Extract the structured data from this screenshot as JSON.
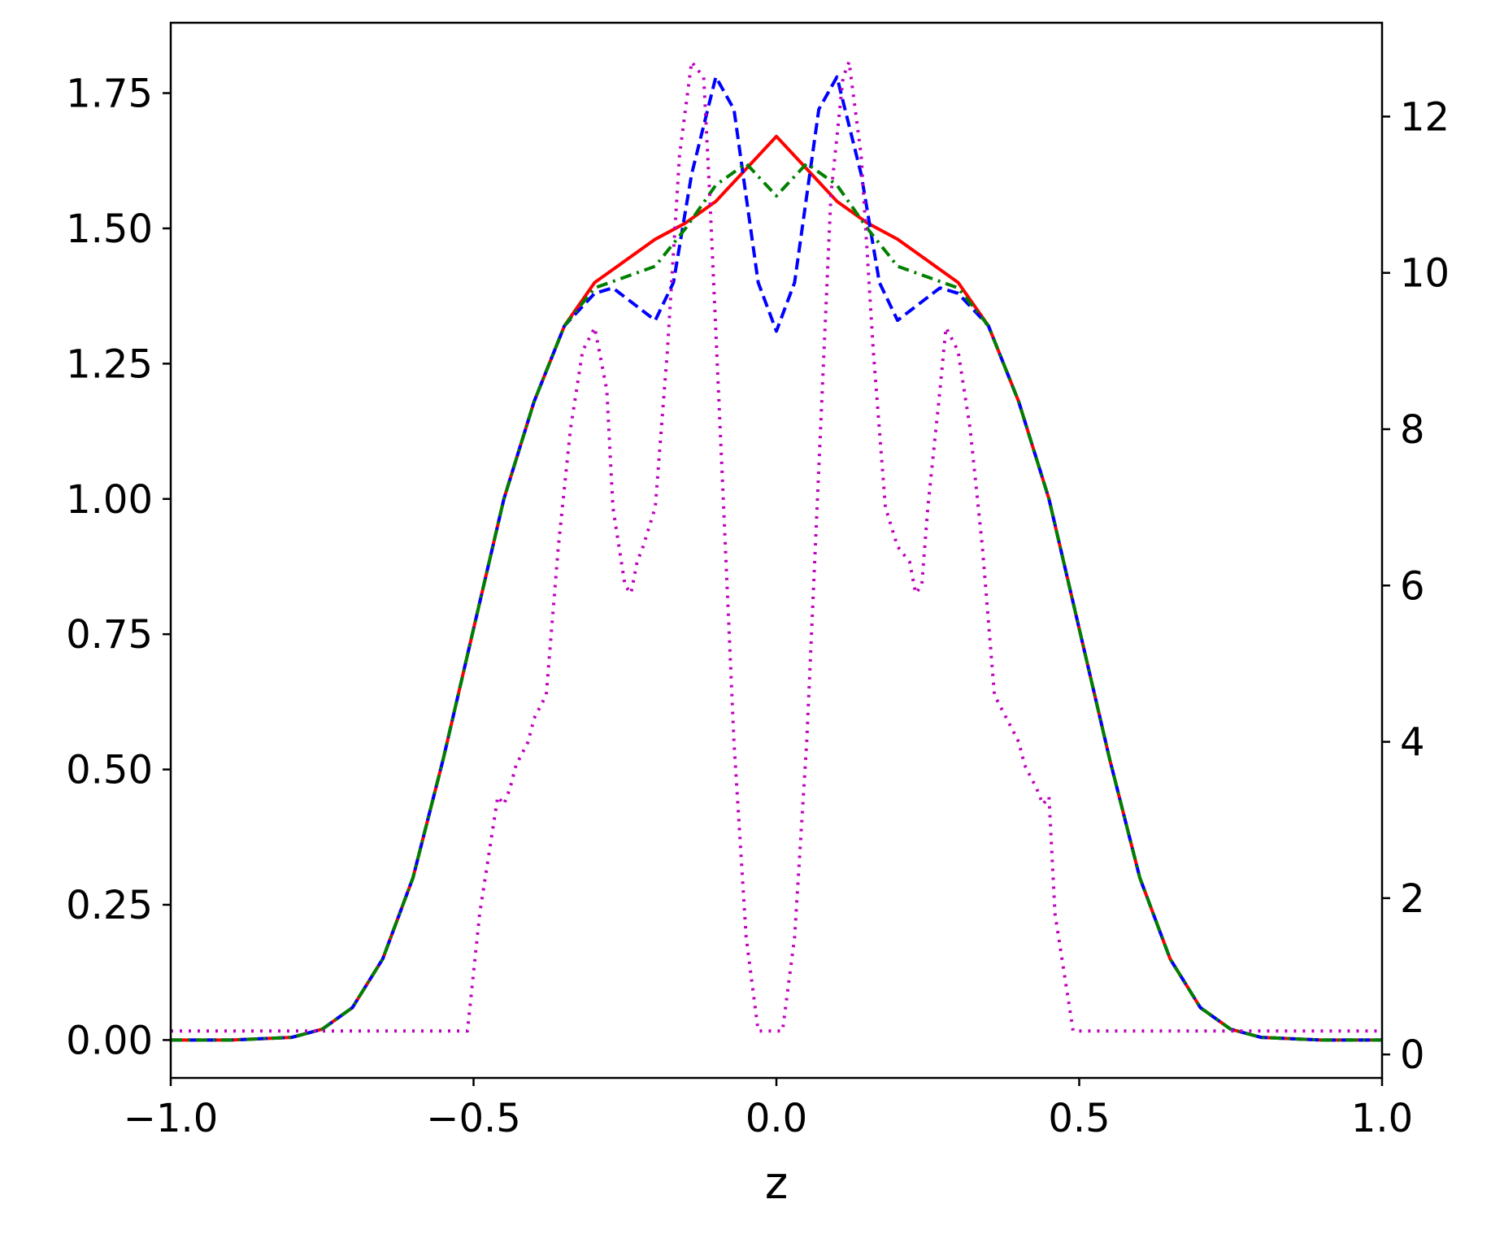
{
  "chart_data": {
    "type": "line",
    "title": "",
    "xlabel": "z",
    "ylabel": "",
    "ylabel_right": "",
    "xlim": [
      -1.0,
      1.0
    ],
    "ylim": [
      -0.07,
      1.88
    ],
    "ylim_right": [
      -0.3,
      13.2
    ],
    "grid": false,
    "legend": "none",
    "x_ticks": [
      {
        "value": -1.0,
        "label": "−1.0"
      },
      {
        "value": -0.5,
        "label": "−0.5"
      },
      {
        "value": 0.0,
        "label": "0.0"
      },
      {
        "value": 0.5,
        "label": "0.5"
      },
      {
        "value": 1.0,
        "label": "1.0"
      }
    ],
    "y_ticks": [
      {
        "value": 0.0,
        "label": "0.00"
      },
      {
        "value": 0.25,
        "label": "0.25"
      },
      {
        "value": 0.5,
        "label": "0.50"
      },
      {
        "value": 0.75,
        "label": "0.75"
      },
      {
        "value": 1.0,
        "label": "1.00"
      },
      {
        "value": 1.25,
        "label": "1.25"
      },
      {
        "value": 1.5,
        "label": "1.50"
      },
      {
        "value": 1.75,
        "label": "1.75"
      }
    ],
    "y_ticks_right": [
      {
        "value": 0,
        "label": "0"
      },
      {
        "value": 2,
        "label": "2"
      },
      {
        "value": 4,
        "label": "4"
      },
      {
        "value": 6,
        "label": "6"
      },
      {
        "value": 8,
        "label": "8"
      },
      {
        "value": 10,
        "label": "10"
      },
      {
        "value": 12,
        "label": "12"
      }
    ],
    "series": [
      {
        "color": "#ff0000",
        "style": "solid",
        "axis": "left",
        "x": [
          -1.0,
          -0.9,
          -0.8,
          -0.75,
          -0.7,
          -0.65,
          -0.6,
          -0.55,
          -0.5,
          -0.45,
          -0.4,
          -0.35,
          -0.3,
          -0.25,
          -0.2,
          -0.15,
          -0.1,
          -0.05,
          0.0,
          0.05,
          0.1,
          0.15,
          0.2,
          0.25,
          0.3,
          0.35,
          0.4,
          0.45,
          0.5,
          0.55,
          0.6,
          0.65,
          0.7,
          0.75,
          0.8,
          0.9,
          1.0
        ],
        "y": [
          0.0,
          0.0,
          0.005,
          0.02,
          0.06,
          0.15,
          0.3,
          0.52,
          0.76,
          1.0,
          1.18,
          1.32,
          1.4,
          1.44,
          1.48,
          1.51,
          1.55,
          1.61,
          1.67,
          1.61,
          1.55,
          1.51,
          1.48,
          1.44,
          1.4,
          1.32,
          1.18,
          1.0,
          0.76,
          0.52,
          0.3,
          0.15,
          0.06,
          0.02,
          0.005,
          0.0,
          0.0
        ]
      },
      {
        "color": "#0000ff",
        "style": "dashed",
        "axis": "left",
        "x": [
          -1.0,
          -0.9,
          -0.8,
          -0.75,
          -0.7,
          -0.65,
          -0.6,
          -0.55,
          -0.5,
          -0.45,
          -0.4,
          -0.35,
          -0.3,
          -0.27,
          -0.2,
          -0.17,
          -0.14,
          -0.1,
          -0.07,
          -0.03,
          0.0,
          0.03,
          0.07,
          0.1,
          0.14,
          0.17,
          0.2,
          0.27,
          0.3,
          0.35,
          0.4,
          0.45,
          0.5,
          0.55,
          0.6,
          0.65,
          0.7,
          0.75,
          0.8,
          0.9,
          1.0
        ],
        "y": [
          0.0,
          0.0,
          0.005,
          0.02,
          0.06,
          0.15,
          0.3,
          0.52,
          0.76,
          1.0,
          1.18,
          1.32,
          1.38,
          1.39,
          1.33,
          1.4,
          1.6,
          1.78,
          1.72,
          1.4,
          1.31,
          1.4,
          1.72,
          1.78,
          1.6,
          1.4,
          1.33,
          1.39,
          1.38,
          1.32,
          1.18,
          1.0,
          0.76,
          0.52,
          0.3,
          0.15,
          0.06,
          0.02,
          0.005,
          0.0,
          0.0
        ]
      },
      {
        "color": "#008000",
        "style": "dashdot",
        "axis": "left",
        "x": [
          -1.0,
          -0.9,
          -0.8,
          -0.75,
          -0.7,
          -0.65,
          -0.6,
          -0.55,
          -0.5,
          -0.45,
          -0.4,
          -0.35,
          -0.3,
          -0.25,
          -0.2,
          -0.15,
          -0.1,
          -0.05,
          0.0,
          0.05,
          0.1,
          0.15,
          0.2,
          0.25,
          0.3,
          0.35,
          0.4,
          0.45,
          0.5,
          0.55,
          0.6,
          0.65,
          0.7,
          0.75,
          0.8,
          0.9,
          1.0
        ],
        "y": [
          0.0,
          0.0,
          0.005,
          0.02,
          0.06,
          0.15,
          0.3,
          0.52,
          0.76,
          1.0,
          1.18,
          1.32,
          1.39,
          1.41,
          1.43,
          1.5,
          1.58,
          1.62,
          1.56,
          1.62,
          1.58,
          1.5,
          1.43,
          1.41,
          1.39,
          1.32,
          1.18,
          1.0,
          0.76,
          0.52,
          0.3,
          0.15,
          0.06,
          0.02,
          0.005,
          0.0,
          0.0
        ]
      },
      {
        "color": "#bf00bf",
        "style": "dotted",
        "axis": "right",
        "x": [
          -1.0,
          -0.51,
          -0.49,
          -0.46,
          -0.45,
          -0.44,
          -0.43,
          -0.41,
          -0.4,
          -0.38,
          -0.36,
          -0.34,
          -0.32,
          -0.3,
          -0.28,
          -0.27,
          -0.25,
          -0.24,
          -0.23,
          -0.22,
          -0.2,
          -0.18,
          -0.16,
          -0.14,
          -0.12,
          -0.11,
          -0.09,
          -0.07,
          -0.05,
          -0.03,
          -0.01,
          0.0,
          0.01,
          0.03,
          0.05,
          0.07,
          0.09,
          0.11,
          0.12,
          0.14,
          0.16,
          0.18,
          0.2,
          0.22,
          0.23,
          0.24,
          0.25,
          0.27,
          0.28,
          0.3,
          0.32,
          0.34,
          0.36,
          0.38,
          0.4,
          0.41,
          0.43,
          0.44,
          0.45,
          0.46,
          0.49,
          0.51,
          1.0
        ],
        "y": [
          0.3,
          0.3,
          1.8,
          3.3,
          3.2,
          3.4,
          3.7,
          4.0,
          4.3,
          4.6,
          6.5,
          8.0,
          9.0,
          9.3,
          8.5,
          7.0,
          6.0,
          5.9,
          6.3,
          6.5,
          7.0,
          9.0,
          11.5,
          12.7,
          12.5,
          11.0,
          7.5,
          4.0,
          1.5,
          0.3,
          0.3,
          0.3,
          0.3,
          1.5,
          4.0,
          7.5,
          11.0,
          12.5,
          12.7,
          11.5,
          9.0,
          7.0,
          6.5,
          6.3,
          5.9,
          6.0,
          7.0,
          8.5,
          9.3,
          9.0,
          8.0,
          6.5,
          4.6,
          4.3,
          4.0,
          3.7,
          3.4,
          3.2,
          3.3,
          1.8,
          0.3,
          0.3,
          0.3
        ]
      }
    ]
  }
}
